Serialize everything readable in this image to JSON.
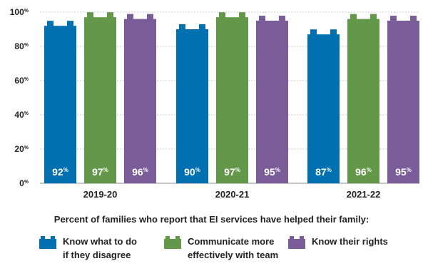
{
  "chart_data": {
    "type": "bar",
    "title": "",
    "caption": "Percent of families who report that EI services have helped their family:",
    "categories": [
      "2019-20",
      "2020-21",
      "2021-22"
    ],
    "series": [
      {
        "name": "Know what to do if they disagree",
        "legend_lines": [
          "Know what to do",
          "if they disagree"
        ],
        "color": "#0070b0",
        "values": [
          92,
          90,
          87
        ]
      },
      {
        "name": "Communicate more effectively with team",
        "legend_lines": [
          "Communicate more",
          "effectively with team"
        ],
        "color": "#63984a",
        "values": [
          97,
          97,
          96
        ]
      },
      {
        "name": "Know their rights",
        "legend_lines": [
          "Know their rights"
        ],
        "color": "#7a5c98",
        "values": [
          96,
          95,
          95
        ]
      }
    ],
    "yticks": [
      0,
      20,
      40,
      60,
      80,
      100
    ],
    "tick_suffix": "%",
    "value_suffix": "%",
    "ylim": [
      0,
      100
    ],
    "grid": true,
    "legend_position": "bottom"
  }
}
